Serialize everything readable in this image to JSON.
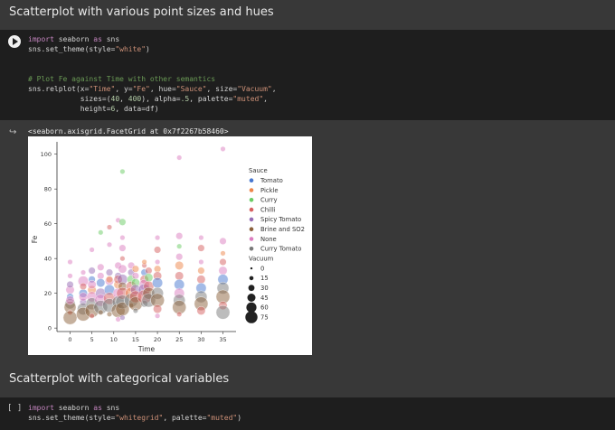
{
  "section1_title": "Scatterplot with various point sizes and hues",
  "cell1": {
    "line1": {
      "kw": "import",
      "rest": " seaborn ",
      "kw2": "as",
      "rest2": " sns"
    },
    "line2": {
      "pre": "sns.set_theme(style=",
      "str": "\"white\"",
      "post": ")"
    },
    "comment": "# Plot Fe against Time with other semantics",
    "line4": {
      "a": "sns.relplot(x=",
      "b": "\"Time\"",
      "c": ", y=",
      "d": "\"Fe\"",
      "e": ", hue=",
      "f": "\"Sauce\"",
      "g": ", size=",
      "h": "\"Vacuum\"",
      "i": ","
    },
    "line5": {
      "a": "            sizes=(",
      "b": "40",
      "c": ", ",
      "d": "400",
      "e": "), alpha=",
      "f": ".5",
      "g": ", palette=",
      "h": "\"muted\"",
      "i": ","
    },
    "line6": {
      "a": "            height=",
      "b": "6",
      "c": ", data=df)"
    }
  },
  "output_text": "<seaborn.axisgrid.FacetGrid at 0x7f2267b58460>",
  "section2_title": "Scatterplot with categorical variables",
  "cell2": {
    "button": "[ ]",
    "line1": {
      "kw": "import",
      "rest": " seaborn ",
      "kw2": "as",
      "rest2": " sns"
    },
    "line2": {
      "pre": "sns.set_theme(style=",
      "str1": "\"whitegrid\"",
      "mid": ", palette=",
      "str2": "\"muted\"",
      "post": ")"
    }
  },
  "chart_data": {
    "type": "scatter",
    "xlabel": "Time",
    "ylabel": "Fe",
    "x_ticks": [
      0,
      5,
      10,
      15,
      20,
      25,
      30,
      35
    ],
    "y_ticks": [
      0,
      20,
      40,
      60,
      80,
      100
    ],
    "xlim": [
      -3,
      38
    ],
    "ylim": [
      -2,
      104
    ],
    "legend_position": "right",
    "hue_title": "Sauce",
    "hue": [
      {
        "name": "Tomato",
        "color": "#4878d0"
      },
      {
        "name": "Pickle",
        "color": "#ee854a"
      },
      {
        "name": "Curry",
        "color": "#6acc64"
      },
      {
        "name": "Chilli",
        "color": "#d65f5f"
      },
      {
        "name": "Spicy Tomato",
        "color": "#956cb4"
      },
      {
        "name": "Brine and SO2",
        "color": "#8c613c"
      },
      {
        "name": "None",
        "color": "#dc7ec0"
      },
      {
        "name": "Curry Tomato",
        "color": "#797979"
      }
    ],
    "size_title": "Vacuum",
    "size_levels": [
      0,
      15,
      30,
      45,
      60,
      75
    ],
    "points": [
      [
        0,
        38,
        6,
        0
      ],
      [
        0,
        22,
        6,
        30
      ],
      [
        0,
        18,
        0,
        15
      ],
      [
        0,
        14,
        7,
        45
      ],
      [
        0,
        12,
        5,
        60
      ],
      [
        0,
        9,
        3,
        0
      ],
      [
        0,
        6,
        5,
        75
      ],
      [
        0,
        25,
        4,
        15
      ],
      [
        0,
        16,
        6,
        30
      ],
      [
        0,
        30,
        6,
        0
      ],
      [
        3,
        20,
        0,
        30
      ],
      [
        3,
        15,
        4,
        15
      ],
      [
        3,
        27,
        6,
        45
      ],
      [
        3,
        11,
        7,
        60
      ],
      [
        3,
        8,
        5,
        75
      ],
      [
        3,
        32,
        6,
        0
      ],
      [
        3,
        24,
        3,
        15
      ],
      [
        3,
        18,
        6,
        30
      ],
      [
        5,
        45,
        6,
        0
      ],
      [
        5,
        28,
        0,
        15
      ],
      [
        5,
        22,
        1,
        30
      ],
      [
        5,
        18,
        6,
        45
      ],
      [
        5,
        14,
        7,
        60
      ],
      [
        5,
        10,
        5,
        75
      ],
      [
        5,
        7,
        3,
        0
      ],
      [
        5,
        33,
        4,
        15
      ],
      [
        5,
        25,
        6,
        30
      ],
      [
        7,
        55,
        2,
        0
      ],
      [
        7,
        30,
        6,
        15
      ],
      [
        7,
        26,
        0,
        30
      ],
      [
        7,
        20,
        4,
        45
      ],
      [
        7,
        16,
        6,
        60
      ],
      [
        7,
        12,
        7,
        75
      ],
      [
        7,
        9,
        5,
        0
      ],
      [
        7,
        35,
        6,
        15
      ],
      [
        9,
        48,
        6,
        0
      ],
      [
        9,
        32,
        4,
        15
      ],
      [
        9,
        27,
        6,
        30
      ],
      [
        9,
        22,
        0,
        45
      ],
      [
        9,
        17,
        3,
        60
      ],
      [
        9,
        13,
        7,
        75
      ],
      [
        9,
        8,
        5,
        0
      ],
      [
        9,
        58,
        3,
        0
      ],
      [
        9,
        28,
        1,
        15
      ],
      [
        11,
        62,
        6,
        0
      ],
      [
        11,
        30,
        4,
        15
      ],
      [
        11,
        25,
        1,
        30
      ],
      [
        11,
        20,
        6,
        45
      ],
      [
        11,
        15,
        7,
        60
      ],
      [
        11,
        10,
        5,
        75
      ],
      [
        11,
        36,
        6,
        15
      ],
      [
        11,
        28,
        3,
        30
      ],
      [
        11,
        5,
        6,
        0
      ],
      [
        12,
        90,
        2,
        0
      ],
      [
        12,
        61,
        2,
        15
      ],
      [
        12,
        52,
        6,
        0
      ],
      [
        12,
        46,
        6,
        15
      ],
      [
        12,
        40,
        3,
        0
      ],
      [
        12,
        34,
        6,
        30
      ],
      [
        12,
        28,
        4,
        45
      ],
      [
        12,
        24,
        5,
        30
      ],
      [
        12,
        20,
        3,
        60
      ],
      [
        12,
        15,
        7,
        75
      ],
      [
        12,
        11,
        5,
        75
      ],
      [
        12,
        6,
        4,
        0
      ],
      [
        14,
        32,
        4,
        15
      ],
      [
        14,
        28,
        2,
        30
      ],
      [
        14,
        24,
        3,
        45
      ],
      [
        14,
        20,
        1,
        60
      ],
      [
        14,
        16,
        7,
        75
      ],
      [
        14,
        13,
        5,
        0
      ],
      [
        14,
        36,
        6,
        15
      ],
      [
        15,
        30,
        6,
        15
      ],
      [
        15,
        26,
        2,
        30
      ],
      [
        15,
        22,
        4,
        45
      ],
      [
        15,
        18,
        3,
        60
      ],
      [
        15,
        14,
        5,
        75
      ],
      [
        15,
        10,
        7,
        0
      ],
      [
        15,
        34,
        1,
        15
      ],
      [
        17,
        36,
        3,
        0
      ],
      [
        17,
        32,
        0,
        15
      ],
      [
        17,
        28,
        3,
        30
      ],
      [
        17,
        25,
        6,
        45
      ],
      [
        17,
        22,
        4,
        60
      ],
      [
        17,
        18,
        3,
        75
      ],
      [
        17,
        14,
        7,
        15
      ],
      [
        17,
        38,
        1,
        0
      ],
      [
        18,
        33,
        3,
        15
      ],
      [
        18,
        29,
        2,
        30
      ],
      [
        18,
        24,
        3,
        45
      ],
      [
        18,
        20,
        5,
        60
      ],
      [
        18,
        16,
        7,
        75
      ],
      [
        20,
        52,
        6,
        0
      ],
      [
        20,
        45,
        3,
        15
      ],
      [
        20,
        38,
        6,
        0
      ],
      [
        20,
        34,
        1,
        15
      ],
      [
        20,
        30,
        3,
        30
      ],
      [
        20,
        26,
        0,
        45
      ],
      [
        20,
        20,
        7,
        60
      ],
      [
        20,
        16,
        5,
        75
      ],
      [
        20,
        11,
        3,
        30
      ],
      [
        20,
        7,
        6,
        0
      ],
      [
        25,
        98,
        6,
        0
      ],
      [
        25,
        53,
        6,
        15
      ],
      [
        25,
        47,
        2,
        0
      ],
      [
        25,
        41,
        6,
        15
      ],
      [
        25,
        36,
        1,
        30
      ],
      [
        25,
        30,
        3,
        30
      ],
      [
        25,
        25,
        0,
        45
      ],
      [
        25,
        20,
        6,
        45
      ],
      [
        25,
        16,
        7,
        60
      ],
      [
        25,
        12,
        5,
        75
      ],
      [
        25,
        8,
        3,
        0
      ],
      [
        30,
        52,
        6,
        0
      ],
      [
        30,
        46,
        3,
        15
      ],
      [
        30,
        38,
        6,
        0
      ],
      [
        30,
        33,
        1,
        15
      ],
      [
        30,
        28,
        3,
        30
      ],
      [
        30,
        23,
        0,
        45
      ],
      [
        30,
        18,
        7,
        60
      ],
      [
        30,
        14,
        5,
        75
      ],
      [
        30,
        10,
        3,
        30
      ],
      [
        35,
        103,
        6,
        0
      ],
      [
        35,
        50,
        6,
        15
      ],
      [
        35,
        43,
        1,
        0
      ],
      [
        35,
        38,
        3,
        15
      ],
      [
        35,
        33,
        6,
        30
      ],
      [
        35,
        28,
        0,
        45
      ],
      [
        35,
        23,
        7,
        60
      ],
      [
        35,
        18,
        5,
        75
      ],
      [
        35,
        13,
        3,
        30
      ],
      [
        35,
        9,
        7,
        75
      ]
    ]
  }
}
